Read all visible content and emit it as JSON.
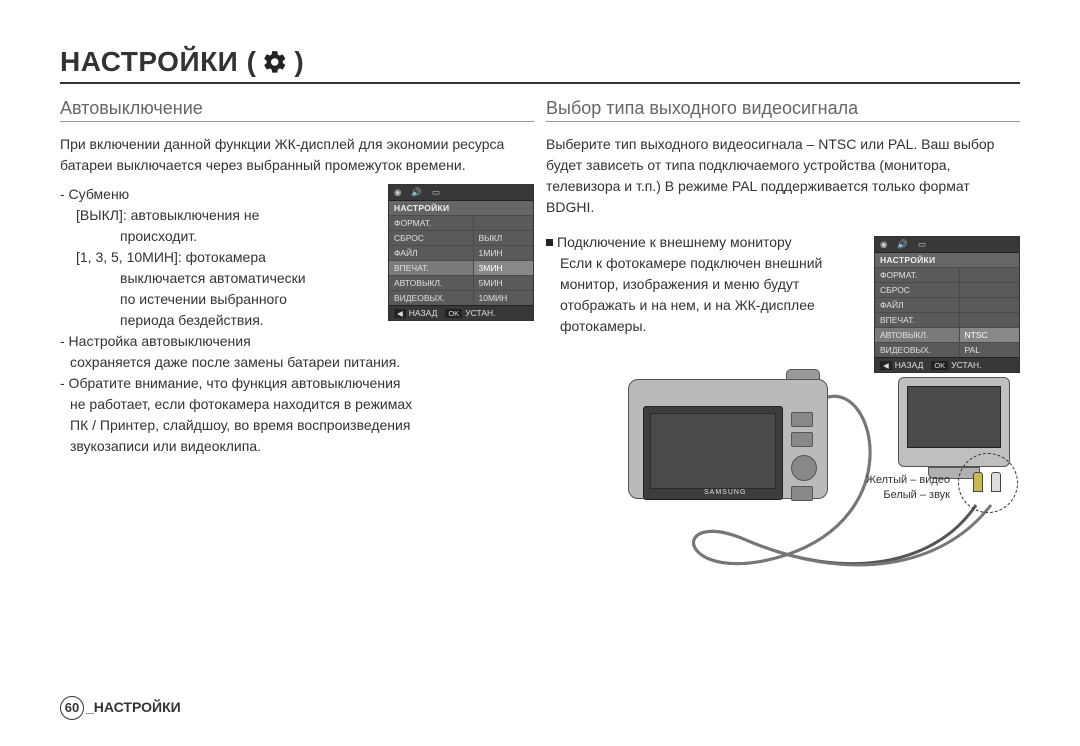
{
  "title_prefix": "НАСТРОЙКИ (",
  "title_suffix": ")",
  "left": {
    "heading": "Автовыключение",
    "intro": "При включении данной функции ЖК-дисплей для экономии ресурса батареи выключается через выбранный промежуток времени.",
    "submenu_label": "- Субменю",
    "vykl_line": "[ВЫКЛ]: автовыключения не",
    "vykl_line2": "происходит.",
    "min_line": "[1, 3, 5, 10МИН]: фотокамера",
    "min_line2": "выключается автоматически",
    "min_line3": "по истечении выбранного",
    "min_line4": "периода бездействия.",
    "note1": "- Настройка автовыключения",
    "note1b": "  сохраняется даже после замены батареи питания.",
    "note2": "- Обратите внимание, что функция автовыключения",
    "note2b": "  не работает, если фотокамера находится в режимах",
    "note2c": "  ПК / Принтер, слайдшоу, во время воспроизведения",
    "note2d": "  звукозаписи или видеоклипа.",
    "lcd": {
      "header": "НАСТРОЙКИ",
      "rows": [
        {
          "label": "ФОРМАТ.",
          "val": ""
        },
        {
          "label": "СБРОС",
          "val": "ВЫКЛ"
        },
        {
          "label": "ФАЙЛ",
          "val": "1МИН"
        },
        {
          "label": "ВПЕЧАТ.",
          "val": "3МИН",
          "hl": true
        },
        {
          "label": "АВТОВЫКЛ.",
          "val": "5МИН"
        },
        {
          "label": "ВИДЕОВЫХ.",
          "val": "10МИН"
        }
      ],
      "back": "НАЗАД",
      "ok": "OK",
      "set": "УСТАН."
    }
  },
  "right": {
    "heading": "Выбор типа выходного видеосигнала",
    "intro": "Выберите тип выходного видеосигнала – NTSC или PAL.  Ваш выбор будет зависеть от типа подключаемого устройства (монитора, телевизора и т.п.) В режиме PAL поддерживается только формат BDGHI.",
    "bullet_title": "Подключение к внешнему монитору",
    "bullet_body": "Если к фотокамере подключен внешний монитор, изображения и меню будут отображать и на нем, и на ЖК-дисплее фотокамеры.",
    "lcd": {
      "header": "НАСТРОЙКИ",
      "rows": [
        {
          "label": "ФОРМАТ.",
          "val": ""
        },
        {
          "label": "СБРОС",
          "val": ""
        },
        {
          "label": "ФАЙЛ",
          "val": ""
        },
        {
          "label": "ВПЕЧАТ.",
          "val": ""
        },
        {
          "label": "АВТОВЫКЛ.",
          "val": "NTSC",
          "hl": true
        },
        {
          "label": "ВИДЕОВЫХ.",
          "val": "PAL"
        }
      ],
      "back": "НАЗАД",
      "ok": "OK",
      "set": "УСТАН."
    },
    "cable_yellow": "Желтый – видео",
    "cable_white": "Белый – звук",
    "camera_brand": "SAMSUNG"
  },
  "footer": {
    "page_num": "60",
    "label": "_НАСТРОЙКИ"
  }
}
